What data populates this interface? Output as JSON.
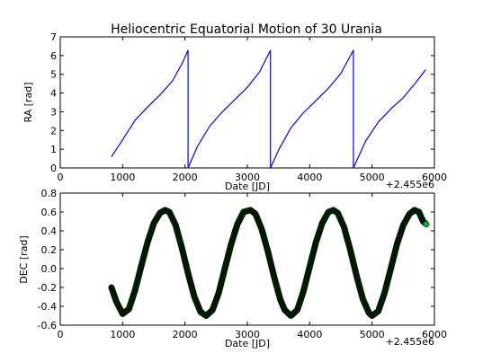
{
  "chart_data": [
    {
      "type": "line",
      "title": "Heliocentric Equatorial Motion of 30 Urania",
      "xlabel": "Date [JD]",
      "ylabel": "RA [rad]",
      "x_offset_label": "+2.455e6",
      "xlim": [
        0,
        6000
      ],
      "ylim": [
        0,
        7
      ],
      "xticks": [
        "0",
        "1000",
        "2000",
        "3000",
        "4000",
        "5000",
        "6000"
      ],
      "yticks": [
        "0",
        "1",
        "2",
        "3",
        "4",
        "5",
        "6",
        "7"
      ],
      "line_color": "#0000ff",
      "series": [
        {
          "segments": [
            [
              [
                820,
                0.6
              ],
              [
                1000,
                1.5
              ],
              [
                1200,
                2.55
              ],
              [
                1400,
                3.25
              ],
              [
                1600,
                3.9
              ],
              [
                1800,
                4.65
              ],
              [
                1950,
                5.55
              ],
              [
                2050,
                6.28
              ]
            ],
            [
              [
                2050,
                0.0
              ],
              [
                2200,
                1.15
              ],
              [
                2400,
                2.25
              ],
              [
                2600,
                3.0
              ],
              [
                2800,
                3.65
              ],
              [
                3000,
                4.3
              ],
              [
                3200,
                5.15
              ],
              [
                3370,
                6.28
              ]
            ],
            [
              [
                3370,
                0.0
              ],
              [
                3500,
                0.95
              ],
              [
                3700,
                2.15
              ],
              [
                3900,
                2.95
              ],
              [
                4100,
                3.6
              ],
              [
                4300,
                4.25
              ],
              [
                4500,
                5.05
              ],
              [
                4700,
                6.28
              ]
            ],
            [
              [
                4700,
                0.0
              ],
              [
                4900,
                1.45
              ],
              [
                5100,
                2.45
              ],
              [
                5300,
                3.15
              ],
              [
                5500,
                3.75
              ],
              [
                5700,
                4.55
              ],
              [
                5860,
                5.25
              ]
            ]
          ]
        }
      ]
    },
    {
      "type": "line",
      "xlabel": "Date [JD]",
      "ylabel": "DEC [rad]",
      "x_offset_label": "+2.455e6",
      "xlim": [
        0,
        6000
      ],
      "ylim": [
        -0.6,
        0.8
      ],
      "xticks": [
        "0",
        "1000",
        "2000",
        "3000",
        "4000",
        "5000",
        "6000"
      ],
      "yticks": [
        "-0.6",
        "-0.4",
        "-0.2",
        "0.0",
        "0.2",
        "0.4",
        "0.6",
        "0.8"
      ],
      "line_color": "#001a00",
      "end_marker_color": "#22aa22",
      "series": [
        {
          "x": [
            820,
            900,
            1000,
            1100,
            1200,
            1300,
            1400,
            1500,
            1600,
            1680,
            1750,
            1850,
            1950,
            2050,
            2150,
            2250,
            2340,
            2440,
            2540,
            2640,
            2740,
            2840,
            2940,
            3050,
            3130,
            3230,
            3330,
            3430,
            3530,
            3600,
            3700,
            3800,
            3900,
            4000,
            4100,
            4200,
            4300,
            4380,
            4450,
            4550,
            4650,
            4750,
            4850,
            4950,
            5000,
            5100,
            5200,
            5300,
            5400,
            5500,
            5600,
            5680,
            5750,
            5820,
            5870
          ],
          "y": [
            -0.2,
            -0.35,
            -0.48,
            -0.43,
            -0.23,
            0.03,
            0.28,
            0.48,
            0.59,
            0.62,
            0.6,
            0.46,
            0.22,
            -0.05,
            -0.3,
            -0.46,
            -0.5,
            -0.44,
            -0.26,
            0.0,
            0.26,
            0.47,
            0.6,
            0.62,
            0.58,
            0.42,
            0.18,
            -0.09,
            -0.33,
            -0.44,
            -0.5,
            -0.44,
            -0.24,
            0.02,
            0.28,
            0.48,
            0.6,
            0.62,
            0.59,
            0.44,
            0.2,
            -0.07,
            -0.32,
            -0.47,
            -0.5,
            -0.45,
            -0.26,
            0.0,
            0.26,
            0.46,
            0.58,
            0.62,
            0.6,
            0.5,
            0.47
          ]
        }
      ]
    }
  ]
}
